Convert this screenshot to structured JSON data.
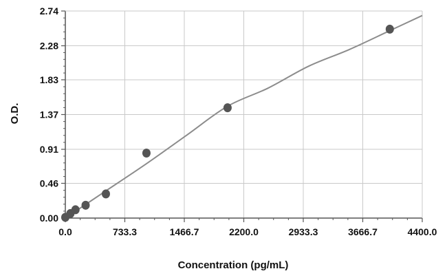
{
  "chart_data": {
    "type": "scatter",
    "xlabel": "Concentration (pg/mL)",
    "ylabel": "O.D.",
    "xlim": [
      0,
      4400
    ],
    "ylim": [
      0,
      2.74
    ],
    "x_ticks": [
      0,
      733.3,
      1466.7,
      2200,
      2933.3,
      3666.7,
      4400
    ],
    "x_tick_labels": [
      "0.0",
      "733.3",
      "1466.7",
      "2200.0",
      "2933.3",
      "3666.7",
      "4400.0"
    ],
    "y_ticks": [
      0,
      0.46,
      0.91,
      1.37,
      1.83,
      2.28,
      2.74
    ],
    "y_tick_labels": [
      "0.00",
      "0.46",
      "0.91",
      "1.37",
      "1.83",
      "2.28",
      "2.74"
    ],
    "grid": true,
    "points": [
      {
        "x": 0,
        "y": 0.01
      },
      {
        "x": 62.5,
        "y": 0.06
      },
      {
        "x": 125,
        "y": 0.11
      },
      {
        "x": 250,
        "y": 0.17
      },
      {
        "x": 500,
        "y": 0.32
      },
      {
        "x": 1000,
        "y": 0.86
      },
      {
        "x": 2000,
        "y": 1.46
      },
      {
        "x": 4000,
        "y": 2.5
      }
    ],
    "fit_curve": {
      "type": "smooth curve",
      "x": [
        0,
        250,
        500,
        1000,
        1500,
        2000,
        2500,
        3000,
        3500,
        4000,
        4400
      ],
      "y": [
        0.0,
        0.18,
        0.36,
        0.72,
        1.1,
        1.48,
        1.72,
        2.01,
        2.23,
        2.48,
        2.68
      ]
    },
    "colors": {
      "point": "#555555",
      "curve": "#8c8c8c",
      "grid": "#c9c9c9",
      "axis": "#555555"
    }
  }
}
